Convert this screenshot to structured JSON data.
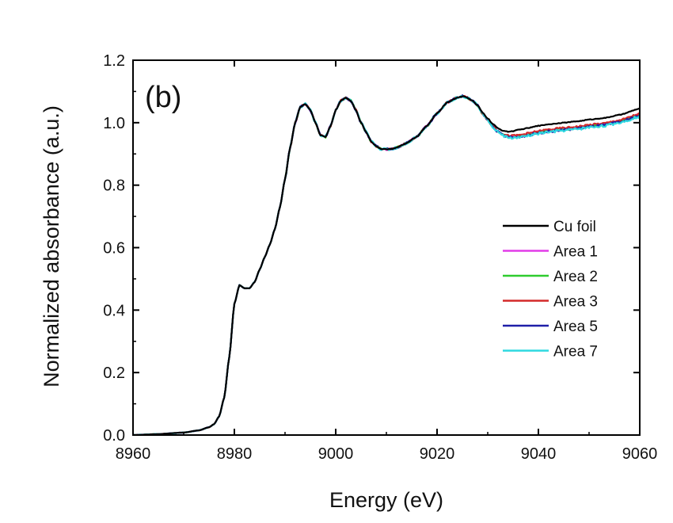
{
  "chart_data": {
    "type": "line",
    "panel_label": "(b)",
    "xlabel": "Energy (eV)",
    "ylabel": "Normalized absorbance (a.u.)",
    "xlim": [
      8960,
      9060
    ],
    "ylim": [
      0.0,
      1.2
    ],
    "x_ticks": [
      "8960",
      "8980",
      "9000",
      "9020",
      "9040",
      "9060"
    ],
    "y_ticks": [
      "0.0",
      "0.2",
      "0.4",
      "0.6",
      "0.8",
      "1.0",
      "1.2"
    ],
    "legend_position": "middle-right",
    "series": [
      {
        "name": "Cu foil",
        "color": "#000000",
        "offset_tail": 0.015,
        "wiggle": 0.002
      },
      {
        "name": "Area 1",
        "color": "#e23ce8",
        "offset_tail": -0.004,
        "wiggle": 0.006
      },
      {
        "name": "Area 2",
        "color": "#2ecc2e",
        "offset_tail": -0.006,
        "wiggle": 0.007
      },
      {
        "name": "Area 3",
        "color": "#d42a2a",
        "offset_tail": -0.002,
        "wiggle": 0.006
      },
      {
        "name": "Area 5",
        "color": "#1f1fa8",
        "offset_tail": -0.008,
        "wiggle": 0.007
      },
      {
        "name": "Area 7",
        "color": "#2fd9e0",
        "offset_tail": -0.01,
        "wiggle": 0.008
      }
    ],
    "base_curve": {
      "x": [
        8960,
        8965,
        8970,
        8973,
        8975,
        8976,
        8977,
        8978,
        8979,
        8980,
        8981,
        8982,
        8983,
        8984,
        8985,
        8986,
        8987,
        8988,
        8989,
        8990,
        8991,
        8992,
        8993,
        8994,
        8995,
        8996,
        8997,
        8998,
        8999,
        9000,
        9001,
        9002,
        9003,
        9004,
        9005,
        9006,
        9007,
        9008,
        9009,
        9010,
        9011,
        9012,
        9014,
        9016,
        9018,
        9020,
        9022,
        9024,
        9025,
        9026,
        9027,
        9028,
        9029,
        9030,
        9031,
        9032,
        9033,
        9034,
        9035,
        9036,
        9038,
        9040,
        9042,
        9045,
        9048,
        9050,
        9053,
        9056,
        9060
      ],
      "y": [
        0.0,
        0.003,
        0.008,
        0.015,
        0.025,
        0.035,
        0.06,
        0.12,
        0.25,
        0.42,
        0.48,
        0.47,
        0.47,
        0.49,
        0.53,
        0.57,
        0.61,
        0.66,
        0.73,
        0.82,
        0.92,
        1.0,
        1.05,
        1.06,
        1.04,
        1.0,
        0.96,
        0.955,
        0.99,
        1.04,
        1.07,
        1.08,
        1.07,
        1.04,
        1.0,
        0.97,
        0.94,
        0.925,
        0.915,
        0.915,
        0.915,
        0.92,
        0.935,
        0.955,
        0.99,
        1.03,
        1.065,
        1.08,
        1.085,
        1.08,
        1.07,
        1.055,
        1.03,
        1.01,
        0.99,
        0.975,
        0.965,
        0.96,
        0.96,
        0.962,
        0.968,
        0.975,
        0.98,
        0.985,
        0.99,
        0.995,
        1.0,
        1.01,
        1.03
      ]
    }
  }
}
